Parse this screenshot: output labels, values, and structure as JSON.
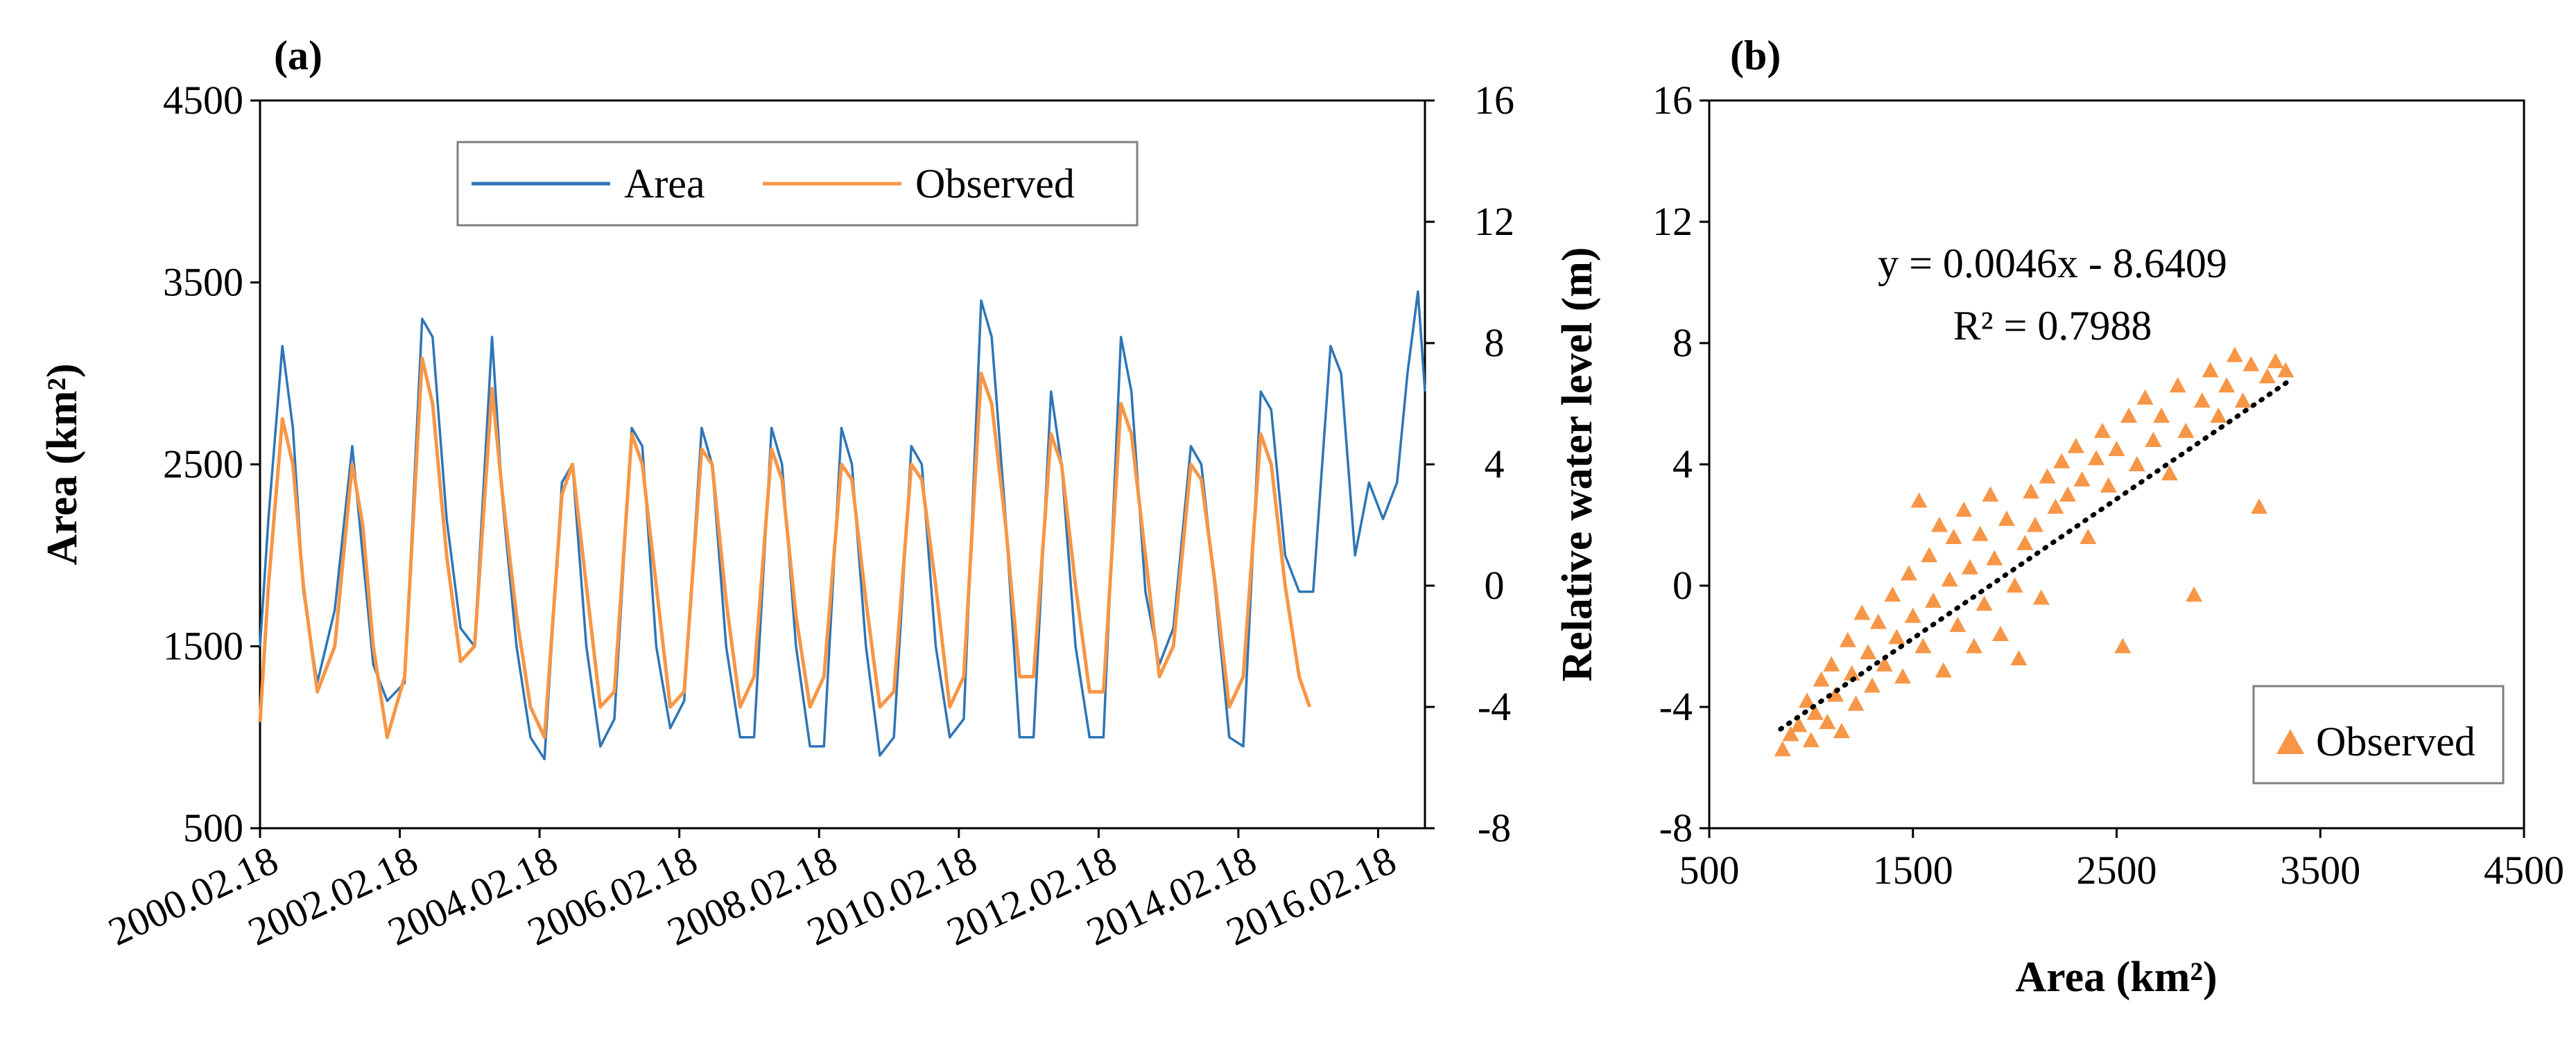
{
  "chart_data": [
    {
      "panel": "(a)",
      "type": "line",
      "ylabel": "Area (km²)",
      "ylim": [
        500,
        4500
      ],
      "yticks": [
        "500",
        "1500",
        "2500",
        "3500",
        "4500"
      ],
      "y2lim": [
        -8,
        16
      ],
      "y2ticks": [
        "-8",
        "-4",
        "0",
        "4",
        "8",
        "12",
        "16"
      ],
      "xlim": [
        2000.13,
        2016.8
      ],
      "xticks": [
        {
          "label": "2000.02.18",
          "x": 2000.13
        },
        {
          "label": "2002.02.18",
          "x": 2002.13
        },
        {
          "label": "2004.02.18",
          "x": 2004.13
        },
        {
          "label": "2006.02.18",
          "x": 2006.13
        },
        {
          "label": "2008.02.18",
          "x": 2008.13
        },
        {
          "label": "2010.02.18",
          "x": 2010.13
        },
        {
          "label": "2012.02.18",
          "x": 2012.13
        },
        {
          "label": "2014.02.18",
          "x": 2014.13
        },
        {
          "label": "2016.02.18",
          "x": 2016.13
        }
      ],
      "legend": {
        "placement": "top-center",
        "entries": [
          "Area",
          "Observed"
        ]
      },
      "series": [
        {
          "name": "Area",
          "axis": "left",
          "color": "#2e75b6",
          "x": [
            2000.13,
            2000.25,
            2000.45,
            2000.6,
            2000.75,
            2000.95,
            2001.2,
            2001.45,
            2001.6,
            2001.75,
            2001.95,
            2002.2,
            2002.45,
            2002.6,
            2002.8,
            2003.0,
            2003.2,
            2003.45,
            2003.6,
            2003.8,
            2004.0,
            2004.2,
            2004.45,
            2004.6,
            2004.8,
            2005.0,
            2005.2,
            2005.45,
            2005.6,
            2005.8,
            2006.0,
            2006.2,
            2006.45,
            2006.6,
            2006.8,
            2007.0,
            2007.2,
            2007.45,
            2007.6,
            2007.8,
            2008.0,
            2008.2,
            2008.45,
            2008.6,
            2008.8,
            2009.0,
            2009.2,
            2009.45,
            2009.6,
            2009.8,
            2010.0,
            2010.2,
            2010.45,
            2010.6,
            2010.8,
            2011.0,
            2011.2,
            2011.45,
            2011.6,
            2011.8,
            2012.0,
            2012.2,
            2012.45,
            2012.6,
            2012.8,
            2013.0,
            2013.2,
            2013.45,
            2013.6,
            2013.8,
            2014.0,
            2014.2,
            2014.45,
            2014.6,
            2014.8,
            2015.0,
            2015.2,
            2015.45,
            2015.6,
            2015.8,
            2016.0,
            2016.2,
            2016.4,
            2016.55,
            2016.7,
            2016.8
          ],
          "values": [
            1500,
            2200,
            3150,
            2700,
            1800,
            1300,
            1700,
            2600,
            2000,
            1400,
            1200,
            1300,
            3300,
            3200,
            2200,
            1600,
            1500,
            3200,
            2300,
            1500,
            1000,
            880,
            2400,
            2500,
            1500,
            950,
            1100,
            2700,
            2600,
            1500,
            1050,
            1200,
            2700,
            2500,
            1500,
            1000,
            1000,
            2700,
            2500,
            1500,
            950,
            950,
            2700,
            2500,
            1500,
            900,
            1000,
            2600,
            2500,
            1500,
            1000,
            1100,
            3400,
            3200,
            2200,
            1000,
            1000,
            2900,
            2500,
            1500,
            1000,
            1000,
            3200,
            2900,
            1800,
            1400,
            1600,
            2600,
            2500,
            1800,
            1000,
            950,
            2900,
            2800,
            2000,
            1800,
            1800,
            3150,
            3000,
            2000,
            2400,
            2200,
            2400,
            3000,
            3450,
            2900
          ]
        },
        {
          "name": "Observed",
          "axis": "right",
          "color": "#f79646",
          "x": [
            2000.13,
            2000.25,
            2000.45,
            2000.6,
            2000.75,
            2000.95,
            2001.2,
            2001.45,
            2001.6,
            2001.75,
            2001.95,
            2002.2,
            2002.45,
            2002.6,
            2002.8,
            2003.0,
            2003.2,
            2003.45,
            2003.6,
            2003.8,
            2004.0,
            2004.2,
            2004.45,
            2004.6,
            2004.8,
            2005.0,
            2005.2,
            2005.45,
            2005.6,
            2005.8,
            2006.0,
            2006.2,
            2006.45,
            2006.6,
            2006.8,
            2007.0,
            2007.2,
            2007.45,
            2007.6,
            2007.8,
            2008.0,
            2008.2,
            2008.45,
            2008.6,
            2008.8,
            2009.0,
            2009.2,
            2009.45,
            2009.6,
            2009.8,
            2010.0,
            2010.2,
            2010.45,
            2010.6,
            2010.8,
            2011.0,
            2011.2,
            2011.45,
            2011.6,
            2011.8,
            2012.0,
            2012.2,
            2012.45,
            2012.6,
            2012.8,
            2013.0,
            2013.2,
            2013.45,
            2013.6,
            2013.8,
            2014.0,
            2014.2,
            2014.45,
            2014.6,
            2014.8,
            2015.0,
            2015.15
          ],
          "values": [
            -4.5,
            0,
            5.5,
            4,
            0,
            -3.5,
            -2,
            4,
            2,
            -2,
            -5,
            -3,
            7.5,
            6,
            1,
            -2.5,
            -2,
            6.5,
            3,
            -1,
            -4,
            -5,
            3,
            4,
            0,
            -4,
            -3.5,
            5,
            4,
            0,
            -4,
            -3.5,
            4.5,
            4,
            -0.5,
            -4,
            -3,
            4.5,
            3.5,
            -1,
            -4,
            -3,
            4,
            3.5,
            -0.5,
            -4,
            -3.5,
            4,
            3.5,
            0,
            -4,
            -3,
            7,
            6,
            2,
            -3,
            -3,
            5,
            4,
            0,
            -3.5,
            -3.5,
            6,
            5,
            1,
            -3,
            -2,
            4,
            3.5,
            0,
            -4,
            -3,
            5,
            4,
            0,
            -3,
            -4
          ]
        }
      ]
    },
    {
      "panel": "(b)",
      "type": "scatter",
      "xlabel": "Area (km²)",
      "ylabel": "Relative water level (m)",
      "xlim": [
        500,
        4500
      ],
      "xticks": [
        "500",
        "1500",
        "2500",
        "3500",
        "4500"
      ],
      "ylim": [
        -8,
        16
      ],
      "yticks": [
        "-8",
        "-4",
        "0",
        "4",
        "8",
        "12",
        "16"
      ],
      "legend": {
        "placement": "bottom-right",
        "entries": [
          "Observed"
        ]
      },
      "equation": "y = 0.0046x - 8.6409",
      "r2": "R² = 0.7988",
      "trendline": {
        "slope": 0.0046,
        "intercept": -8.6409,
        "x_range": [
          850,
          3350
        ]
      },
      "series": [
        {
          "name": "Observed",
          "color": "#f79646",
          "marker": "triangle",
          "points": [
            [
              860,
              -5.4
            ],
            [
              900,
              -4.9
            ],
            [
              940,
              -4.6
            ],
            [
              980,
              -3.8
            ],
            [
              1000,
              -5.1
            ],
            [
              1020,
              -4.2
            ],
            [
              1050,
              -3.1
            ],
            [
              1080,
              -4.5
            ],
            [
              1100,
              -2.6
            ],
            [
              1120,
              -3.6
            ],
            [
              1150,
              -4.8
            ],
            [
              1180,
              -1.8
            ],
            [
              1200,
              -2.9
            ],
            [
              1220,
              -3.9
            ],
            [
              1250,
              -0.9
            ],
            [
              1280,
              -2.2
            ],
            [
              1300,
              -3.3
            ],
            [
              1330,
              -1.2
            ],
            [
              1360,
              -2.6
            ],
            [
              1400,
              -0.3
            ],
            [
              1420,
              -1.7
            ],
            [
              1450,
              -3.0
            ],
            [
              1480,
              0.4
            ],
            [
              1500,
              -1.0
            ],
            [
              1530,
              2.8
            ],
            [
              1550,
              -2.0
            ],
            [
              1580,
              1.0
            ],
            [
              1600,
              -0.5
            ],
            [
              1630,
              2.0
            ],
            [
              1650,
              -2.8
            ],
            [
              1680,
              0.2
            ],
            [
              1700,
              1.6
            ],
            [
              1720,
              -1.3
            ],
            [
              1750,
              2.5
            ],
            [
              1780,
              0.6
            ],
            [
              1800,
              -2.0
            ],
            [
              1830,
              1.7
            ],
            [
              1850,
              -0.6
            ],
            [
              1880,
              3.0
            ],
            [
              1900,
              0.9
            ],
            [
              1930,
              -1.6
            ],
            [
              1960,
              2.2
            ],
            [
              2000,
              0.0
            ],
            [
              2020,
              -2.4
            ],
            [
              2050,
              1.4
            ],
            [
              2080,
              3.1
            ],
            [
              2100,
              2.0
            ],
            [
              2130,
              -0.4
            ],
            [
              2160,
              3.6
            ],
            [
              2200,
              2.6
            ],
            [
              2230,
              4.1
            ],
            [
              2260,
              3.0
            ],
            [
              2300,
              4.6
            ],
            [
              2330,
              3.5
            ],
            [
              2360,
              1.6
            ],
            [
              2400,
              4.2
            ],
            [
              2430,
              5.1
            ],
            [
              2460,
              3.3
            ],
            [
              2500,
              4.5
            ],
            [
              2530,
              -2.0
            ],
            [
              2560,
              5.6
            ],
            [
              2600,
              4.0
            ],
            [
              2640,
              6.2
            ],
            [
              2680,
              4.8
            ],
            [
              2720,
              5.6
            ],
            [
              2760,
              3.7
            ],
            [
              2800,
              6.6
            ],
            [
              2840,
              5.1
            ],
            [
              2880,
              -0.3
            ],
            [
              2920,
              6.1
            ],
            [
              2960,
              7.1
            ],
            [
              3000,
              5.6
            ],
            [
              3040,
              6.6
            ],
            [
              3080,
              7.6
            ],
            [
              3120,
              6.1
            ],
            [
              3160,
              7.3
            ],
            [
              3200,
              2.6
            ],
            [
              3240,
              6.9
            ],
            [
              3280,
              7.4
            ],
            [
              3330,
              7.1
            ]
          ]
        }
      ]
    }
  ]
}
